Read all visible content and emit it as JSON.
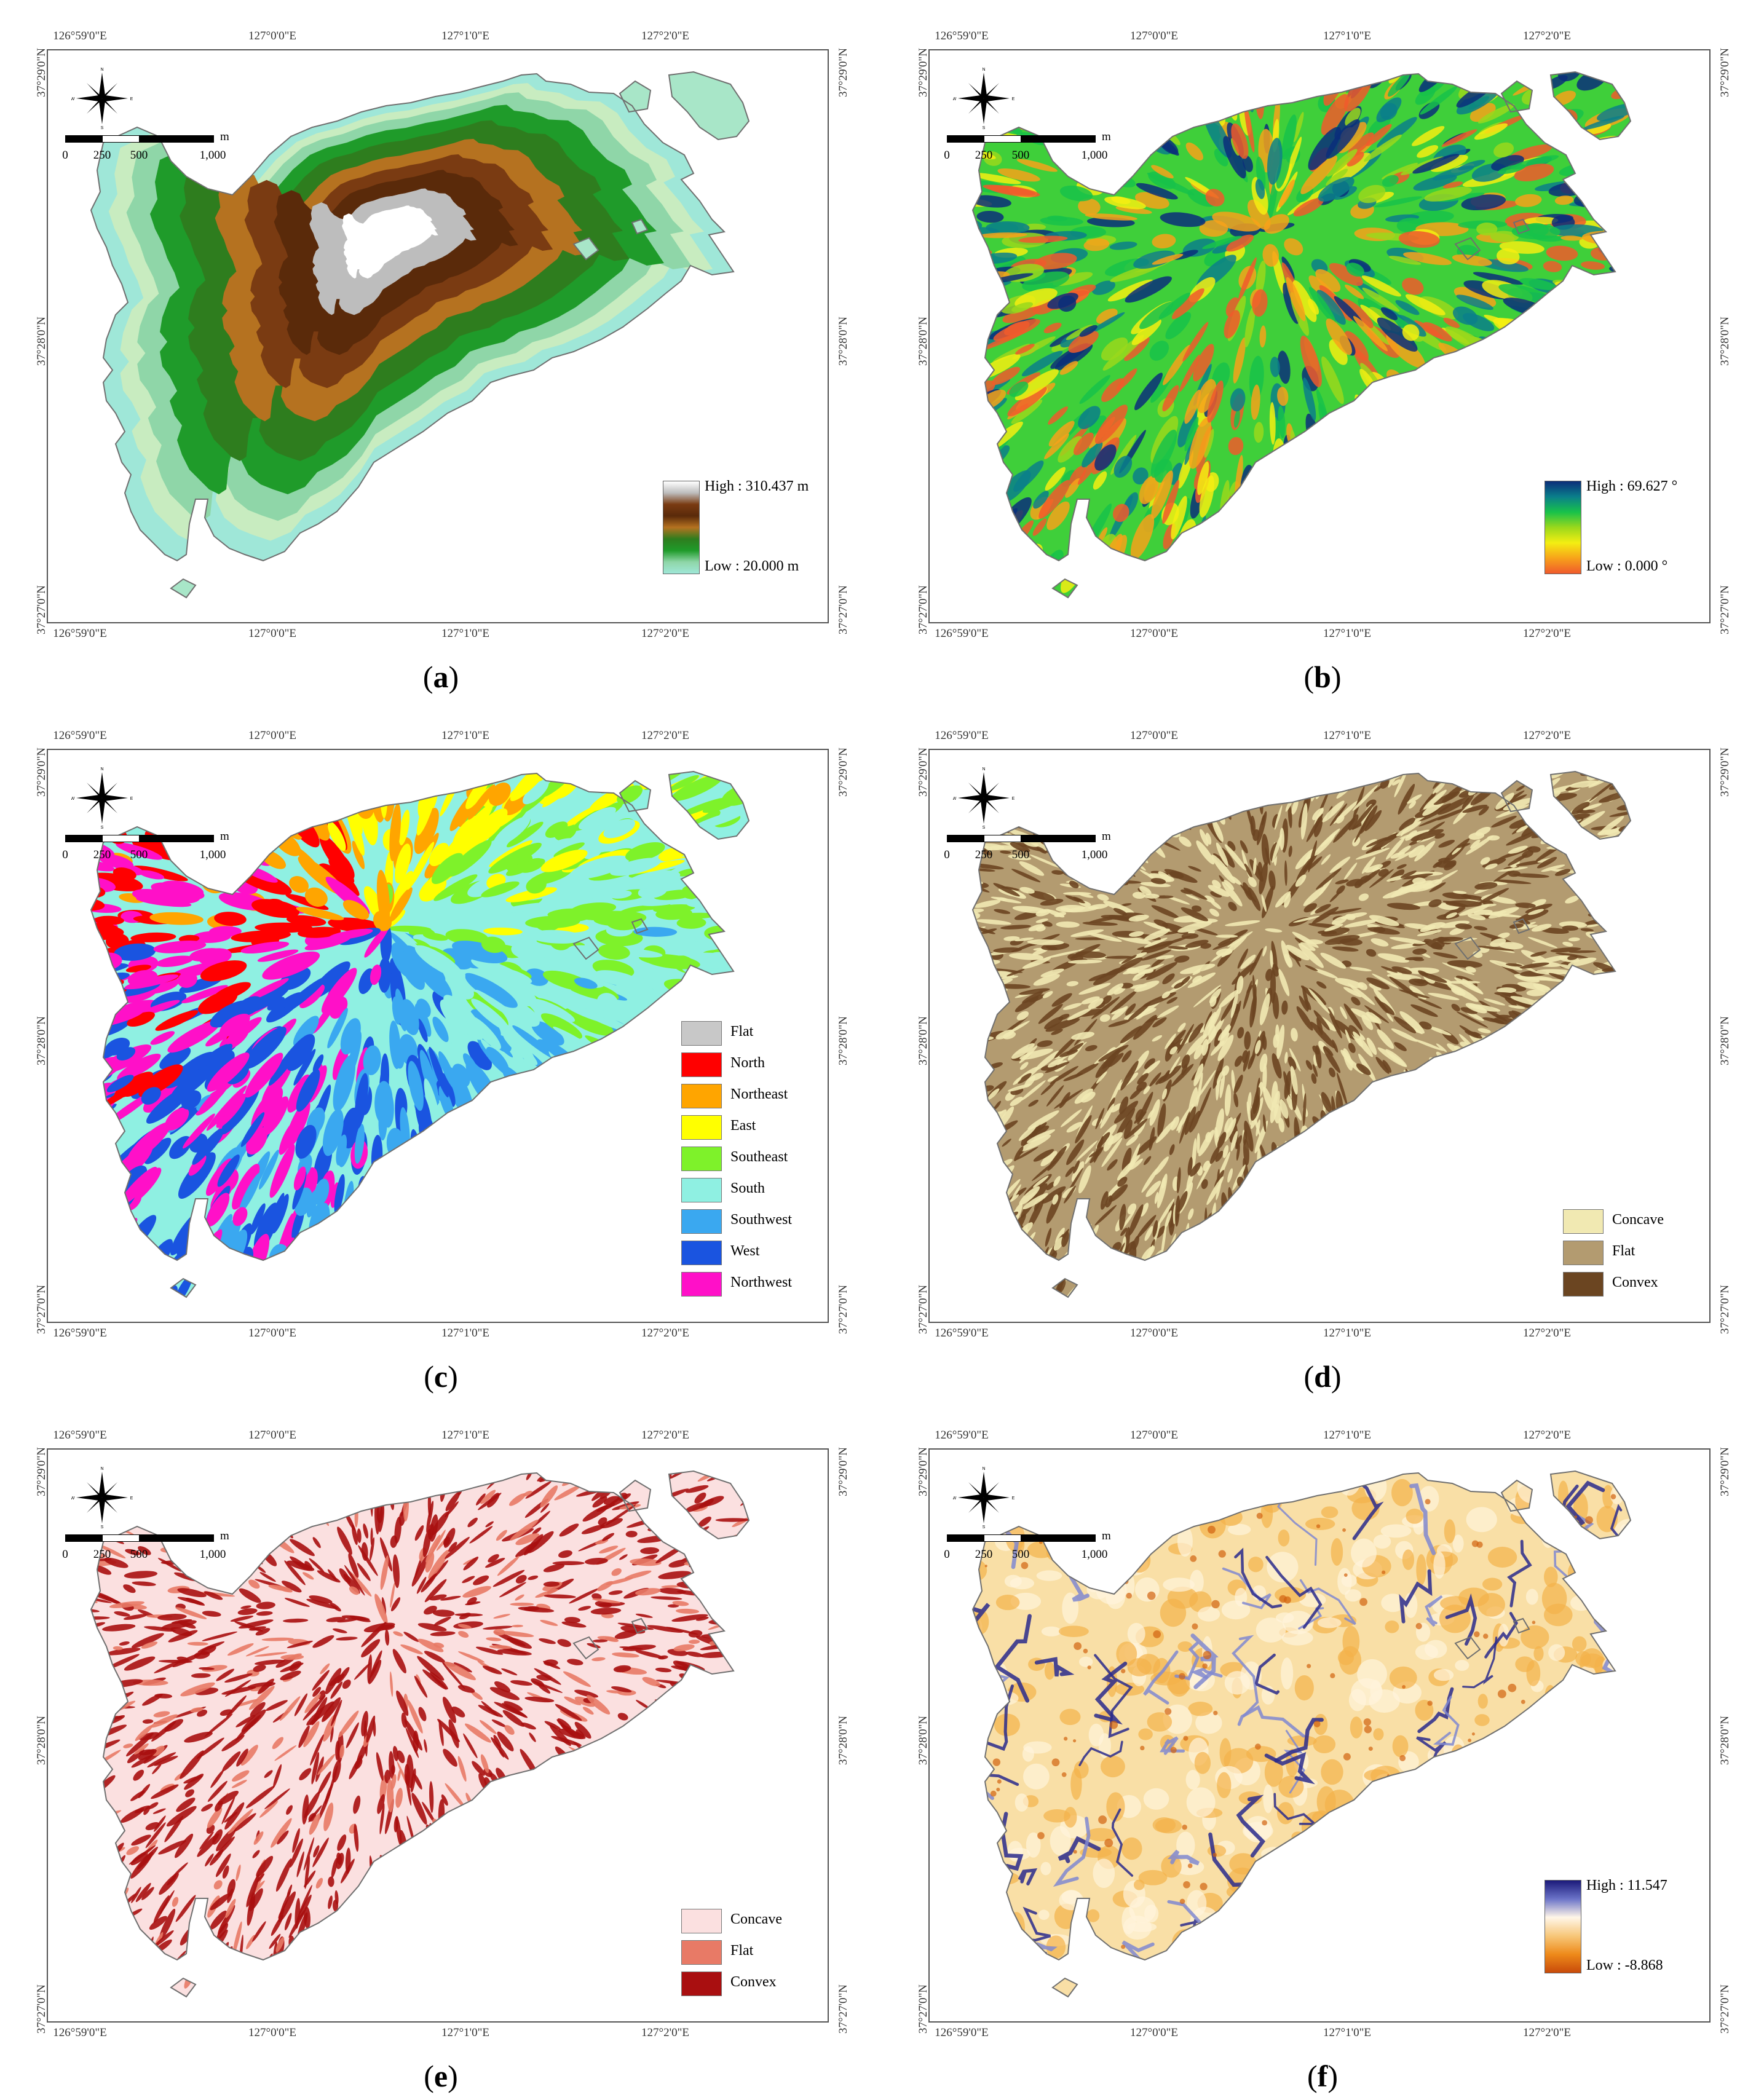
{
  "shared": {
    "lon_ticks": [
      "126°59'0\"E",
      "127°0'0\"E",
      "127°1'0\"E",
      "127°2'0\"E"
    ],
    "lat_ticks": [
      "37°29'0\"N",
      "37°28'0\"N",
      "37°27'0\"N"
    ],
    "compass_labels": {
      "n": "N",
      "e": "E",
      "s": "S",
      "w": "W"
    },
    "scale_labels": [
      "0",
      "250",
      "500",
      "1,000"
    ],
    "scale_unit": "m"
  },
  "panels": [
    {
      "letter": "a",
      "legend_type": "ramp",
      "legend_high": "High : 310.437 m",
      "legend_low": "Low : 20.000 m",
      "fill": "elevation",
      "ramp_colors": [
        "#ffffff",
        "#bdbdbd",
        "#7a3b12",
        "#5a2a0a",
        "#b57220",
        "#2e7d1e",
        "#1f9b2a",
        "#8fd6a8",
        "#9fe7d8"
      ]
    },
    {
      "letter": "b",
      "legend_type": "ramp",
      "legend_high": "High : 69.627 °",
      "legend_low": "Low : 0.000 °",
      "fill": "slope",
      "ramp_colors": [
        "#0b2e7a",
        "#0a7f8a",
        "#18c24a",
        "#9ad81c",
        "#f4ee12",
        "#f7a21a",
        "#f05a2c"
      ]
    },
    {
      "letter": "c",
      "legend_type": "categorical",
      "fill": "aspect",
      "categories": [
        {
          "label": "Flat",
          "color": "#c8c8c8"
        },
        {
          "label": "North",
          "color": "#ff0000"
        },
        {
          "label": "Northeast",
          "color": "#ffa500"
        },
        {
          "label": "East",
          "color": "#ffff00"
        },
        {
          "label": "Southeast",
          "color": "#7ef22a"
        },
        {
          "label": "South",
          "color": "#8ff0e2"
        },
        {
          "label": "Southwest",
          "color": "#3aa8f0"
        },
        {
          "label": "West",
          "color": "#1a54e0"
        },
        {
          "label": "Northwest",
          "color": "#ff10c8"
        }
      ]
    },
    {
      "letter": "d",
      "legend_type": "categorical",
      "fill": "curv1",
      "categories": [
        {
          "label": "Concave",
          "color": "#f1e9b2"
        },
        {
          "label": "Flat",
          "color": "#b39b70"
        },
        {
          "label": "Convex",
          "color": "#6b4521"
        }
      ]
    },
    {
      "letter": "e",
      "legend_type": "categorical",
      "fill": "curv2",
      "categories": [
        {
          "label": "Concave",
          "color": "#fbe0e0"
        },
        {
          "label": "Flat",
          "color": "#e87a66"
        },
        {
          "label": "Convex",
          "color": "#a90f10"
        }
      ]
    },
    {
      "letter": "f",
      "legend_type": "ramp",
      "legend_high": "High : 11.547",
      "legend_low": "Low : -8.868",
      "fill": "twi",
      "ramp_colors": [
        "#1b1a7a",
        "#6b73c8",
        "#fff6e8",
        "#f7c77a",
        "#ee8a1a",
        "#c84a0a"
      ]
    }
  ]
}
